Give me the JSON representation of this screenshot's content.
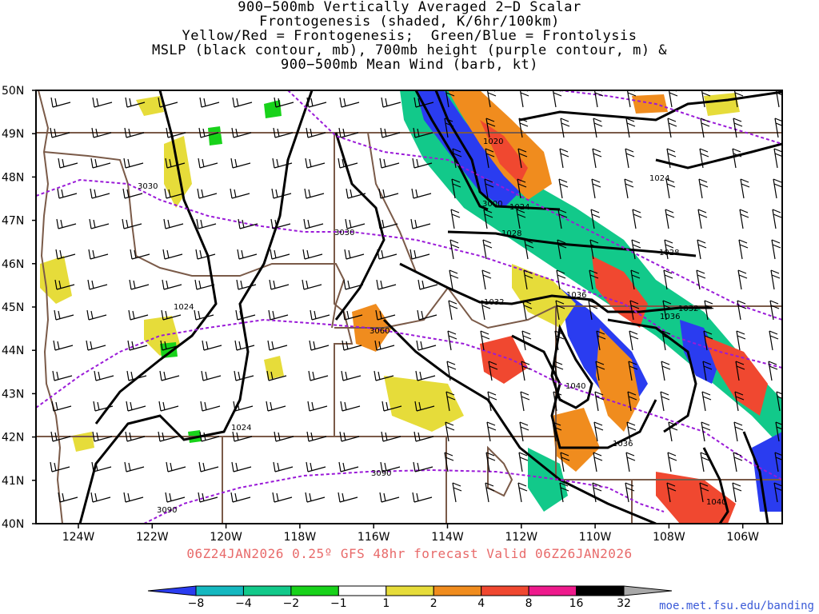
{
  "title_lines": [
    "900−500mb Vertically Averaged 2−D Scalar",
    "Frontogenesis (shaded, K/6hr/100km)",
    "Yellow/Red = Frontogenesis;  Green/Blue = Frontolysis",
    "MSLP (black contour, mb), 700mb height (purple contour, m) &",
    "900−500mb Mean Wind (barb, kt)"
  ],
  "valid_line": "06Z24JAN2026 0.25º GFS 48hr forecast Valid 06Z26JAN2026",
  "credit": "moe.met.fsu.edu/banding",
  "map": {
    "lat_labels": [
      "50N",
      "49N",
      "48N",
      "47N",
      "46N",
      "45N",
      "44N",
      "43N",
      "42N",
      "41N",
      "40N"
    ],
    "lon_labels": [
      "124W",
      "122W",
      "120W",
      "118W",
      "116W",
      "114W",
      "112W",
      "110W",
      "108W",
      "106W"
    ],
    "mslp_labels": [
      "1020",
      "1024",
      "1024",
      "1028",
      "1028",
      "1032",
      "1032",
      "1036",
      "1036",
      "1040",
      "1036",
      "1024",
      "1024",
      "1040"
    ],
    "height_labels": [
      "3030",
      "3030",
      "3060",
      "3090",
      "3090",
      "3000"
    ]
  },
  "colorbar": {
    "labels": [
      "−8",
      "−4",
      "−2",
      "−1",
      "1",
      "2",
      "4",
      "8",
      "16",
      "32"
    ],
    "colors": [
      "#2a3cf0",
      "#15b8c0",
      "#12c98a",
      "#18d21a",
      "#ffffff",
      "#e6dc3a",
      "#f08c1e",
      "#f04830",
      "#ee1a8c",
      "#000000",
      "#a8a8a8"
    ]
  }
}
